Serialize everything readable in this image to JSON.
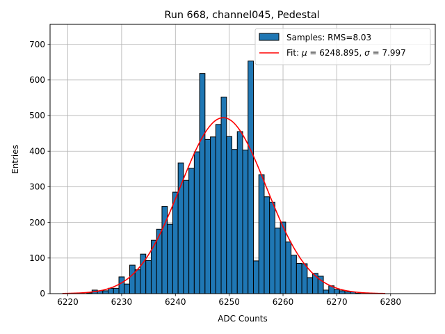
{
  "chart_data": {
    "type": "bar",
    "title": "Run 668, channel045, Pedestal",
    "xlabel": "ADC Counts",
    "ylabel": "Entries",
    "xlim": [
      6216.7,
      6288.3
    ],
    "ylim": [
      0,
      756
    ],
    "xticks": [
      6220,
      6230,
      6240,
      6250,
      6260,
      6270,
      6280
    ],
    "yticks": [
      0,
      100,
      200,
      300,
      400,
      500,
      600,
      700
    ],
    "grid": true,
    "legend_position": "upper right",
    "bin_width": 1,
    "histogram": {
      "name": "Samples: RMS=8.03",
      "color": "#1f77b4",
      "bins": [
        {
          "x": 6224,
          "y": 2
        },
        {
          "x": 6225,
          "y": 10
        },
        {
          "x": 6226,
          "y": 8
        },
        {
          "x": 6227,
          "y": 8
        },
        {
          "x": 6228,
          "y": 15
        },
        {
          "x": 6229,
          "y": 15
        },
        {
          "x": 6230,
          "y": 47
        },
        {
          "x": 6231,
          "y": 27
        },
        {
          "x": 6232,
          "y": 80
        },
        {
          "x": 6233,
          "y": 67
        },
        {
          "x": 6234,
          "y": 111
        },
        {
          "x": 6235,
          "y": 93
        },
        {
          "x": 6236,
          "y": 150
        },
        {
          "x": 6237,
          "y": 181
        },
        {
          "x": 6238,
          "y": 245
        },
        {
          "x": 6239,
          "y": 195
        },
        {
          "x": 6240,
          "y": 285
        },
        {
          "x": 6241,
          "y": 367
        },
        {
          "x": 6242,
          "y": 318
        },
        {
          "x": 6243,
          "y": 352
        },
        {
          "x": 6244,
          "y": 398
        },
        {
          "x": 6245,
          "y": 618
        },
        {
          "x": 6246,
          "y": 433
        },
        {
          "x": 6247,
          "y": 440
        },
        {
          "x": 6248,
          "y": 475
        },
        {
          "x": 6249,
          "y": 552
        },
        {
          "x": 6250,
          "y": 441
        },
        {
          "x": 6251,
          "y": 405
        },
        {
          "x": 6252,
          "y": 455
        },
        {
          "x": 6253,
          "y": 403
        },
        {
          "x": 6254,
          "y": 653
        },
        {
          "x": 6255,
          "y": 92
        },
        {
          "x": 6256,
          "y": 334
        },
        {
          "x": 6257,
          "y": 272
        },
        {
          "x": 6258,
          "y": 257
        },
        {
          "x": 6259,
          "y": 184
        },
        {
          "x": 6260,
          "y": 201
        },
        {
          "x": 6261,
          "y": 145
        },
        {
          "x": 6262,
          "y": 108
        },
        {
          "x": 6263,
          "y": 85
        },
        {
          "x": 6264,
          "y": 84
        },
        {
          "x": 6265,
          "y": 45
        },
        {
          "x": 6266,
          "y": 57
        },
        {
          "x": 6267,
          "y": 49
        },
        {
          "x": 6268,
          "y": 10
        },
        {
          "x": 6269,
          "y": 22
        },
        {
          "x": 6270,
          "y": 12
        },
        {
          "x": 6271,
          "y": 8
        },
        {
          "x": 6272,
          "y": 5
        },
        {
          "x": 6273,
          "y": 5
        },
        {
          "x": 6274,
          "y": 1
        }
      ]
    },
    "fit": {
      "name_prefix": "Fit: ",
      "mu_symbol": "μ",
      "sigma_symbol": "σ",
      "mu_text": " = 6248.895, ",
      "sigma_text": " = 7.997",
      "mu": 6248.895,
      "sigma": 7.997,
      "amplitude": 494,
      "x_range": [
        6219,
        6279
      ],
      "color": "#ff0000"
    }
  }
}
